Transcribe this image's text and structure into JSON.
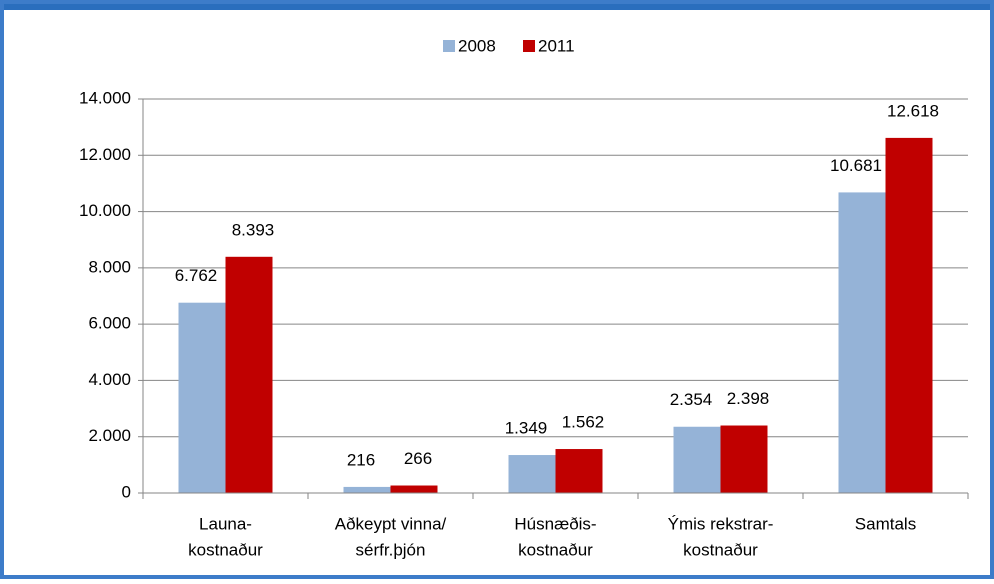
{
  "chart_data": {
    "type": "bar",
    "categories": [
      [
        "Launa-",
        "kostnaður"
      ],
      [
        "Aðkeypt vinna/",
        "sérfr.þjón"
      ],
      [
        "Húsnæðis-",
        "kostnaður"
      ],
      [
        "Ýmis rekstrar-",
        "kostnaður"
      ],
      [
        "Samtals"
      ]
    ],
    "series": [
      {
        "name": "2008",
        "color": "#95b3d7",
        "values": [
          6762,
          216,
          1349,
          2354,
          10681
        ],
        "value_labels": [
          "6.762",
          "216",
          "1.349",
          "2.354",
          "10.681"
        ]
      },
      {
        "name": "2011",
        "color": "#c00000",
        "values": [
          8393,
          266,
          1562,
          2398,
          12618
        ],
        "value_labels": [
          "8.393",
          "266",
          "1.562",
          "2.398",
          "12.618"
        ]
      }
    ],
    "ylim": [
      0,
      14000
    ],
    "yticks": [
      0,
      {
        "value": 2000,
        "label": "2.000"
      },
      {
        "value": 4000,
        "label": "4.000"
      },
      {
        "value": 6000,
        "label": "6.000"
      },
      {
        "value": 8000,
        "label": "8.000"
      },
      {
        "value": 10000,
        "label": "10.000"
      },
      {
        "value": 12000,
        "label": "12.000"
      },
      {
        "value": 14000,
        "label": "14.000"
      }
    ],
    "grid": true,
    "legend": "top"
  }
}
